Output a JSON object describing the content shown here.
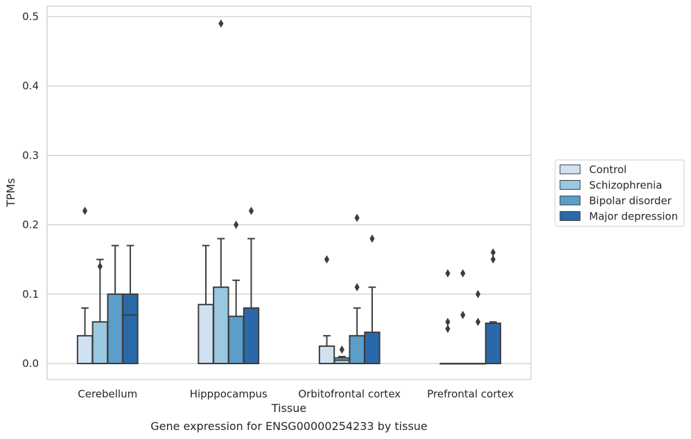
{
  "caption": "Gene expression for ENSG00000254233 by tissue",
  "chart_data": {
    "type": "box",
    "xlabel": "Tissue",
    "ylabel": "TPMs",
    "ylim": [
      -0.023,
      0.515
    ],
    "yticks": [
      0.0,
      0.1,
      0.2,
      0.3,
      0.4,
      0.5
    ],
    "ytick_labels": [
      "0.0",
      "0.1",
      "0.2",
      "0.3",
      "0.4",
      "0.5"
    ],
    "grid": "horizontal",
    "legend_position": "right",
    "categories": [
      "Cerebellum",
      "Hipppocampus",
      "Orbitofrontal cortex",
      "Prefrontal cortex"
    ],
    "series": [
      {
        "name": "Control",
        "color": "#d0e1f2",
        "boxes": [
          {
            "q1": 0.0,
            "median": 0.0,
            "q3": 0.04,
            "whisker_low": 0.0,
            "whisker_high": 0.08,
            "outliers": [
              0.22
            ]
          },
          {
            "q1": 0.0,
            "median": 0.0,
            "q3": 0.085,
            "whisker_low": 0.0,
            "whisker_high": 0.17,
            "outliers": []
          },
          {
            "q1": 0.0,
            "median": 0.0,
            "q3": 0.025,
            "whisker_low": 0.0,
            "whisker_high": 0.04,
            "outliers": [
              0.15
            ]
          },
          {
            "q1": 0.0,
            "median": 0.0,
            "q3": 0.0,
            "whisker_low": 0.0,
            "whisker_high": 0.0,
            "outliers": [
              0.13,
              0.06,
              0.05
            ]
          }
        ]
      },
      {
        "name": "Schizophrenia",
        "color": "#9ac8e0",
        "boxes": [
          {
            "q1": 0.0,
            "median": 0.0,
            "q3": 0.06,
            "whisker_low": 0.0,
            "whisker_high": 0.15,
            "outliers": [
              0.14
            ]
          },
          {
            "q1": 0.0,
            "median": 0.0,
            "q3": 0.11,
            "whisker_low": 0.0,
            "whisker_high": 0.18,
            "outliers": [
              0.49
            ]
          },
          {
            "q1": 0.0,
            "median": 0.005,
            "q3": 0.008,
            "whisker_low": 0.0,
            "whisker_high": 0.01,
            "outliers": [
              0.02
            ]
          },
          {
            "q1": 0.0,
            "median": 0.0,
            "q3": 0.0,
            "whisker_low": 0.0,
            "whisker_high": 0.0,
            "outliers": [
              0.13,
              0.07
            ]
          }
        ]
      },
      {
        "name": "Bipolar disorder",
        "color": "#5a9ec9",
        "boxes": [
          {
            "q1": 0.0,
            "median": 0.0,
            "q3": 0.1,
            "whisker_low": 0.0,
            "whisker_high": 0.17,
            "outliers": []
          },
          {
            "q1": 0.0,
            "median": 0.0,
            "q3": 0.068,
            "whisker_low": 0.0,
            "whisker_high": 0.12,
            "outliers": [
              0.2
            ]
          },
          {
            "q1": 0.0,
            "median": 0.0,
            "q3": 0.04,
            "whisker_low": 0.0,
            "whisker_high": 0.08,
            "outliers": [
              0.21,
              0.11
            ]
          },
          {
            "q1": 0.0,
            "median": 0.0,
            "q3": 0.0,
            "whisker_low": 0.0,
            "whisker_high": 0.0,
            "outliers": [
              0.1,
              0.06
            ]
          }
        ]
      },
      {
        "name": "Major depression",
        "color": "#2a69a9",
        "boxes": [
          {
            "q1": 0.0,
            "median": 0.07,
            "q3": 0.1,
            "whisker_low": 0.0,
            "whisker_high": 0.17,
            "outliers": []
          },
          {
            "q1": 0.0,
            "median": 0.0,
            "q3": 0.08,
            "whisker_low": 0.0,
            "whisker_high": 0.18,
            "outliers": [
              0.22
            ]
          },
          {
            "q1": 0.0,
            "median": 0.0,
            "q3": 0.045,
            "whisker_low": 0.0,
            "whisker_high": 0.11,
            "outliers": [
              0.18
            ]
          },
          {
            "q1": 0.0,
            "median": 0.0,
            "q3": 0.058,
            "whisker_low": 0.0,
            "whisker_high": 0.06,
            "outliers": [
              0.16,
              0.15
            ]
          }
        ]
      }
    ]
  }
}
